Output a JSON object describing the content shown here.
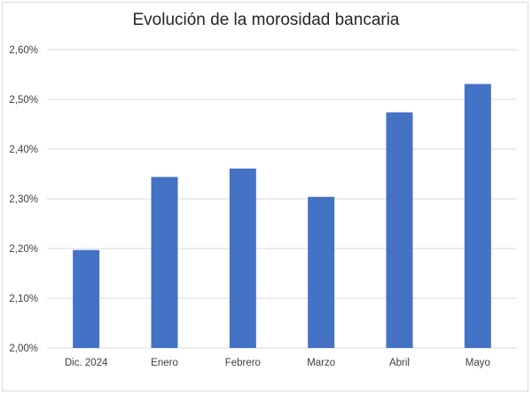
{
  "chart_data": {
    "type": "bar",
    "title": "Evolución de la morosidad bancaria",
    "categories": [
      "Dic. 2024",
      "Enero",
      "Febrero",
      "Marzo",
      "Abril",
      "Mayo"
    ],
    "values": [
      2.197,
      2.344,
      2.361,
      2.304,
      2.474,
      2.531
    ],
    "y_ticks": [
      "2,00%",
      "2,10%",
      "2,20%",
      "2,30%",
      "2,40%",
      "2,50%",
      "2,60%"
    ],
    "ylim": [
      2.0,
      2.6
    ],
    "grid": true,
    "legend": "none",
    "colors": {
      "bar": "#4472c4",
      "grid": "#d9d9d9",
      "text": "#404040"
    }
  }
}
